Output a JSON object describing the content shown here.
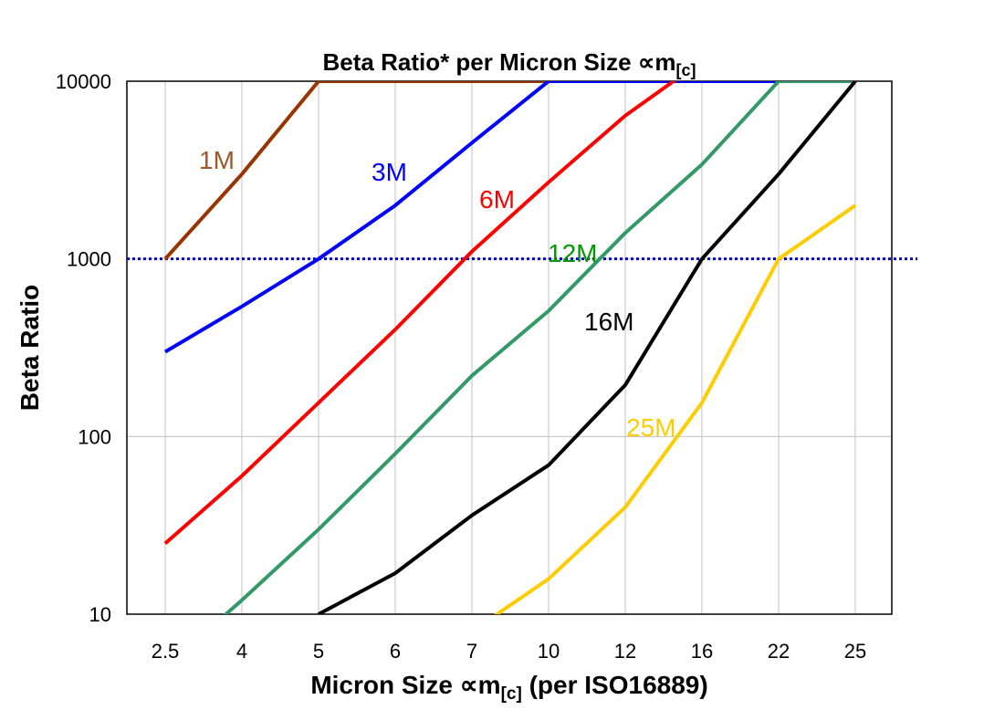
{
  "chart_data": {
    "type": "line",
    "title": "Beta Ratio* per Micron Size ∝m",
    "title_subscript": "[c]",
    "xlabel": "Micron Size ∝m",
    "xlabel_subscript": "[c]",
    "xlabel_suffix": " (per ISO16889)",
    "ylabel": "Beta Ratio",
    "yscale": "log",
    "ylim": [
      10,
      10000
    ],
    "yticks": [
      "10",
      "100",
      "1000",
      "10000"
    ],
    "grid": true,
    "categories": [
      "2.5",
      "4",
      "5",
      "6",
      "7",
      "10",
      "12",
      "16",
      "22",
      "25"
    ],
    "reference_line": {
      "value": 1000,
      "color": "#0000ff",
      "style": "dotted"
    },
    "series": [
      {
        "name": "1M",
        "color": "#993300",
        "label_color": "#9c5a2c",
        "values": [
          1000,
          3000,
          10000,
          10000,
          10000,
          10000,
          null,
          null,
          null,
          null
        ]
      },
      {
        "name": "3M",
        "color": "#0000ff",
        "label_color": "#0000ff",
        "values": [
          300,
          540,
          1000,
          2000,
          4500,
          10000,
          10000,
          10000,
          10000,
          null
        ]
      },
      {
        "name": "6M",
        "color": "#ff0000",
        "label_color": "#ff0000",
        "values": [
          25,
          60,
          155,
          400,
          1100,
          2700,
          6400,
          13000,
          null,
          null
        ]
      },
      {
        "name": "12M",
        "color": "#339966",
        "label_color": "#009900",
        "values": [
          5,
          12,
          30,
          80,
          220,
          510,
          1400,
          3400,
          10000,
          10000
        ]
      },
      {
        "name": "16M",
        "color": "#000000",
        "label_color": "#000000",
        "values": [
          null,
          null,
          10,
          17,
          36,
          69,
          195,
          1000,
          3000,
          10000
        ]
      },
      {
        "name": "25M",
        "color": "#ffcc00",
        "label_color": "#ffcc00",
        "values": [
          null,
          null,
          null,
          null,
          8,
          15.8,
          40,
          155,
          1000,
          2000
        ]
      }
    ]
  }
}
